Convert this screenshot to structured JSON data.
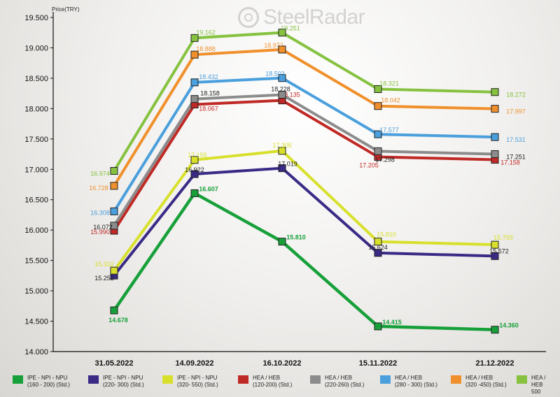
{
  "watermark": {
    "brand": "SteelRadar"
  },
  "chart_data": {
    "type": "line",
    "ylabel": "Price(TRY)",
    "xlabel": "",
    "ylim": [
      14000,
      19500
    ],
    "y_ticks": [
      "14.000",
      "14.500",
      "15.000",
      "15.500",
      "16.000",
      "16.500",
      "17.000",
      "17.500",
      "18.000",
      "18.500",
      "19.000",
      "19.500"
    ],
    "categories": [
      "31.05.2022",
      "14.09.2022",
      "16.10.2022",
      "15.11.2022",
      "21.12.2022"
    ],
    "grid": false,
    "legend_position": "bottom",
    "series": [
      {
        "name": "IPE - NPI - NPU\n(160 - 200) (Std.)",
        "color": "#17a03a",
        "values": [
          14678,
          16607,
          15810,
          14415,
          14360
        ],
        "labels": [
          "14.678",
          "16.607",
          "15.810",
          "14.415",
          "14.360"
        ]
      },
      {
        "name": "IPE - NPI - NPU\n(220- 300) (Std.)",
        "color": "#3a2a86",
        "values": [
          15252,
          16922,
          17019,
          15624,
          15572
        ],
        "labels": [
          "15.252",
          "16.922",
          "17.019",
          "15.624",
          "15.572"
        ]
      },
      {
        "name": "IPE - NPI - NPU\n(320- 550) (Std.)",
        "color": "#d8e02c",
        "values": [
          15332,
          17155,
          17305,
          15810,
          15759
        ],
        "labels": [
          "15.332",
          "17.155",
          "17.305",
          "15.810",
          "15.759"
        ]
      },
      {
        "name": "HEA / HEB\n(120-200) (Std.)",
        "color": "#c02a26",
        "values": [
          15990,
          18067,
          18135,
          17205,
          17158
        ],
        "labels": [
          "15.990",
          "18.067",
          "18.135",
          "17.205",
          "17.158"
        ]
      },
      {
        "name": "HEA / HEB\n(220-260) (Std.)",
        "color": "#8c8c8c",
        "values": [
          16072,
          18158,
          18228,
          17298,
          17251
        ],
        "labels": [
          "16.072",
          "18.158",
          "18.228",
          "17.298",
          "17.251"
        ]
      },
      {
        "name": "HEA / HEB\n(280 - 300) (Std.)",
        "color": "#4a9fdc",
        "values": [
          16308,
          18432,
          18503,
          17577,
          17531
        ],
        "labels": [
          "16.308",
          "18.432",
          "18.503",
          "17.577",
          "17.531"
        ]
      },
      {
        "name": "HEA / HEB\n(320 -450) (Std.)",
        "color": "#f0902c",
        "values": [
          16728,
          18888,
          18972,
          18042,
          17997
        ],
        "labels": [
          "16.728",
          "18.888",
          "18.972",
          "18.042",
          "17.997"
        ]
      },
      {
        "name": "HEA / HEB\n500",
        "color": "#86c240",
        "values": [
          16974,
          19162,
          19251,
          18321,
          18272
        ],
        "labels": [
          "16.974",
          "19.162",
          "19.251",
          "18.321",
          "18.272"
        ]
      }
    ]
  }
}
